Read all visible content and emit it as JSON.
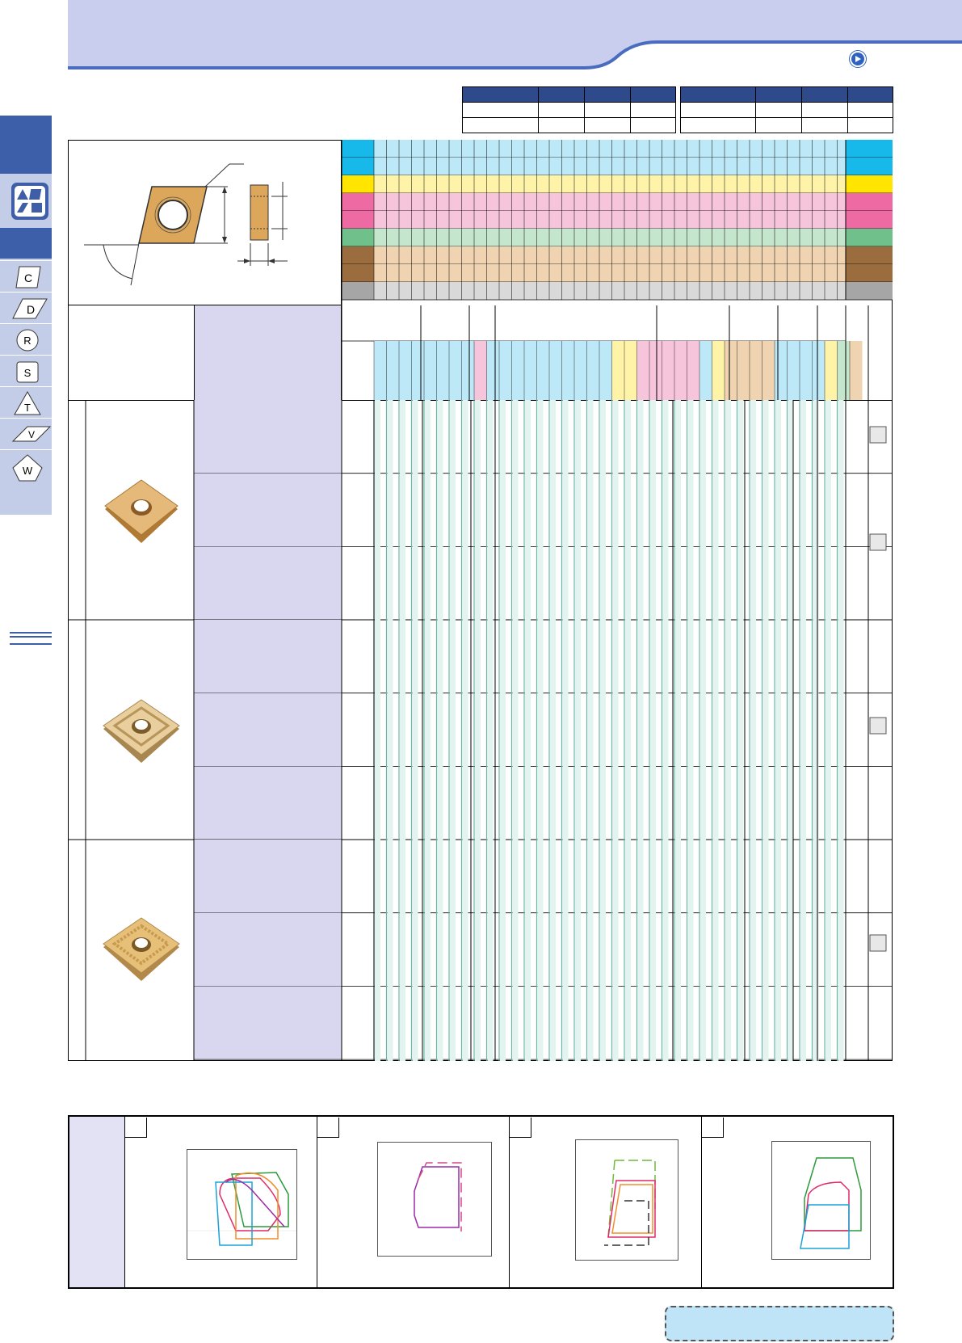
{
  "page": {
    "nav_buttons": [
      "C",
      "D",
      "R",
      "S",
      "T",
      "V",
      "W"
    ],
    "colors": {
      "header_band": "#c9cdee",
      "nav_blue": "#3d5ea9",
      "row_P": "#17b8ea",
      "row_M": "#ffe500",
      "row_K": "#ee6aa3",
      "row_N": "#6fc08a",
      "row_S": "#9b6c3d",
      "row_H": "#a6a6a6",
      "note_box": "#bfe4f7"
    }
  },
  "grade_header_tables": [
    {
      "rows": 3,
      "cols": 4
    },
    {
      "rows": 3,
      "cols": 4
    }
  ],
  "product_groups": [
    {
      "name": "group-1",
      "rows": 3,
      "insert": "plain-insert"
    },
    {
      "name": "group-2",
      "rows": 3,
      "insert": "chipbreaker-insert"
    },
    {
      "name": "group-3",
      "rows": 3,
      "insert": "molded-insert"
    }
  ],
  "charts": [
    {
      "series_colors": [
        "#e0286a",
        "#f08f2a",
        "#2a9a3a",
        "#1aa2d6",
        "#9b2aa8",
        "#7b3f8f"
      ]
    },
    {
      "series_colors": [
        "#9b2aa8",
        "#d04a8a"
      ]
    },
    {
      "series_colors": [
        "#6fba3a",
        "#e0286a",
        "#f08f2a",
        "#333333"
      ]
    },
    {
      "series_colors": [
        "#2a9a3a",
        "#e0286a",
        "#1aa2d6"
      ]
    }
  ]
}
